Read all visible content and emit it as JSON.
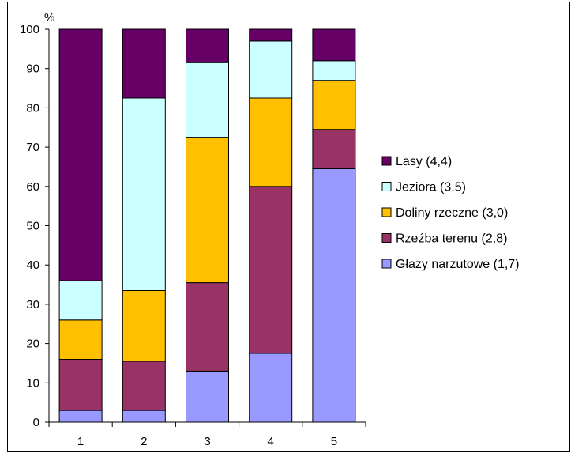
{
  "chart_data": {
    "type": "bar",
    "stacked": true,
    "categories": [
      "1",
      "2",
      "3",
      "4",
      "5"
    ],
    "series": [
      {
        "name": "Głazy narzutowe (1,7)",
        "color": "#9999FF",
        "values": [
          3,
          3,
          13,
          17.5,
          64.5
        ]
      },
      {
        "name": "Rzeźba terenu (2,8)",
        "color": "#993366",
        "values": [
          13,
          12.5,
          22.5,
          42.5,
          10
        ]
      },
      {
        "name": "Doliny rzeczne (3,0)",
        "color": "#FFC000",
        "values": [
          10,
          18,
          37,
          22.5,
          12.5
        ]
      },
      {
        "name": "Jeziora (3,5)",
        "color": "#CCFFFF",
        "values": [
          10,
          49,
          19,
          14.5,
          5
        ]
      },
      {
        "name": "Lasy (4,4)",
        "color": "#660066",
        "values": [
          64,
          17.5,
          8.5,
          3,
          8
        ]
      }
    ],
    "ylabel": "%",
    "ylim": [
      0,
      100
    ],
    "yticks": [
      0,
      10,
      20,
      30,
      40,
      50,
      60,
      70,
      80,
      90,
      100
    ],
    "grid": false,
    "legend_position": "right",
    "legend_order": [
      4,
      3,
      2,
      1,
      0
    ]
  }
}
